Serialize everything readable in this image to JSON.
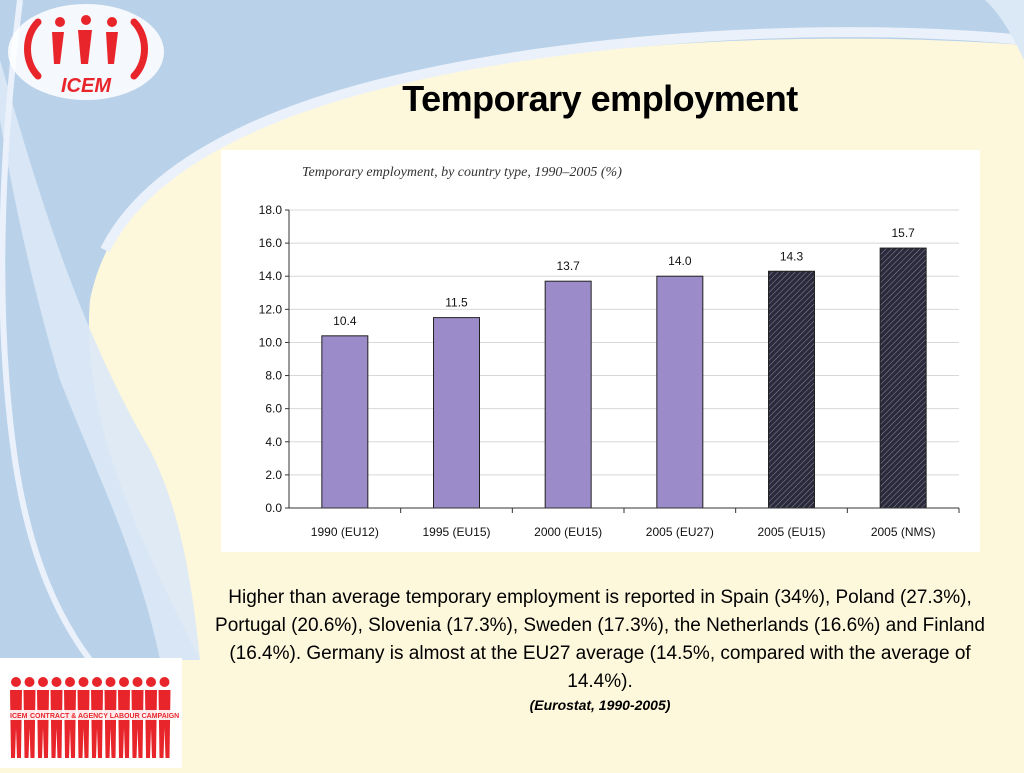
{
  "slide": {
    "title": "Temporary employment",
    "body": "Higher than average temporary employment is reported in Spain (34%), Poland (27.3%), Portugal (20.6%), Slovenia (17.3%), Sweden (17.3%), the Netherlands (16.6%) and Finland (16.4%). Germany is almost at the EU27 average (14.5%, compared with the average of 14.4%).",
    "source": "(Eurostat, 1990-2005)"
  },
  "logo": {
    "text": "ICEM",
    "color": "#e8252b"
  },
  "campaign": {
    "text": "CONTRACT & AGENCY LABOUR CAMPAIGN",
    "brand": "ICEM",
    "color": "#e8252b"
  },
  "chart_data": {
    "type": "bar",
    "title": "Temporary employment, by country type, 1990–2005 (%)",
    "categories": [
      "1990 (EU12)",
      "1995 (EU15)",
      "2000 (EU15)",
      "2005 (EU27)",
      "2005 (EU15)",
      "2005 (NMS)"
    ],
    "values": [
      10.4,
      11.5,
      13.7,
      14.0,
      14.3,
      15.7
    ],
    "value_labels": [
      "10.4",
      "11.5",
      "13.7",
      "14.0",
      "14.3",
      "15.7"
    ],
    "ylim": [
      0,
      18
    ],
    "yticks": [
      "0.0",
      "2.0",
      "4.0",
      "6.0",
      "8.0",
      "10.0",
      "12.0",
      "14.0",
      "16.0",
      "18.0"
    ],
    "grid": true,
    "bar_styles": [
      "solid",
      "solid",
      "solid",
      "solid",
      "hatched",
      "hatched"
    ],
    "colors": {
      "solid": "#9b8bc8",
      "hatched": "#1c1c2c",
      "grid": "#d8d8d8"
    }
  }
}
